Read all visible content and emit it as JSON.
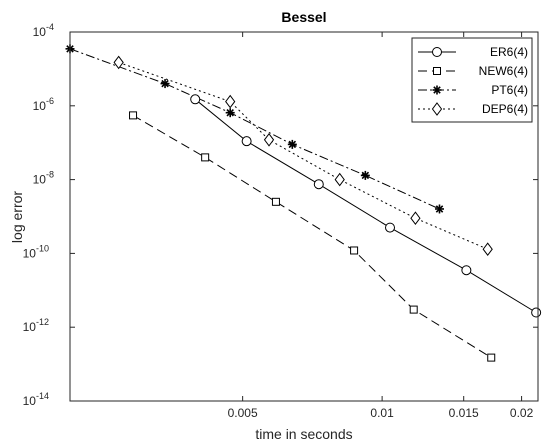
{
  "chart_data": {
    "type": "line",
    "title": "Bessel",
    "xlabel": "time in seconds",
    "ylabel": "log error",
    "x_scale": "log",
    "y_scale": "log",
    "xlim": [
      0.00212,
      0.0217
    ],
    "ylim": [
      1e-14,
      0.0001
    ],
    "x_ticks": [
      0.005,
      0.01,
      0.015,
      0.02
    ],
    "x_tick_labels": [
      "0.005",
      "0.01",
      "0.015",
      "0.02"
    ],
    "y_ticks": [
      1e-14,
      1e-12,
      1e-10,
      1e-08,
      1e-06,
      0.0001
    ],
    "y_tick_labels": [
      {
        "base": "10",
        "exp": "-14"
      },
      {
        "base": "10",
        "exp": "-12"
      },
      {
        "base": "10",
        "exp": "-10"
      },
      {
        "base": "10",
        "exp": "-8"
      },
      {
        "base": "10",
        "exp": "-6"
      },
      {
        "base": "10",
        "exp": "-4"
      }
    ],
    "grid": false,
    "legend_position": "top-right",
    "series": [
      {
        "name": "ER6(4)",
        "marker": "circle",
        "line_style": "solid",
        "x": [
          0.00395,
          0.0051,
          0.0073,
          0.0104,
          0.0152,
          0.0215
        ],
        "y": [
          1.5e-06,
          1.1e-07,
          7.5e-09,
          5e-10,
          3.5e-11,
          2.5e-12
        ]
      },
      {
        "name": "NEW6(4)",
        "marker": "square",
        "line_style": "dashed",
        "x": [
          0.0029,
          0.00415,
          0.0059,
          0.0087,
          0.0117,
          0.0172
        ],
        "y": [
          5.5e-07,
          4e-08,
          2.5e-09,
          1.2e-10,
          3e-12,
          1.5e-13
        ]
      },
      {
        "name": "PT6(4)",
        "marker": "asterisk",
        "line_style": "dashdot",
        "x": [
          0.00212,
          0.0034,
          0.0047,
          0.0064,
          0.0092,
          0.0133
        ],
        "y": [
          3.5e-05,
          4e-06,
          6.5e-07,
          9e-08,
          1.3e-08,
          1.6e-09
        ]
      },
      {
        "name": "DEP6(4)",
        "marker": "diamond",
        "line_style": "dotted",
        "x": [
          0.0027,
          0.0047,
          0.0057,
          0.0081,
          0.0118,
          0.0169
        ],
        "y": [
          1.5e-05,
          1.3e-06,
          1.2e-07,
          1e-08,
          9e-10,
          1.3e-10
        ]
      }
    ]
  }
}
